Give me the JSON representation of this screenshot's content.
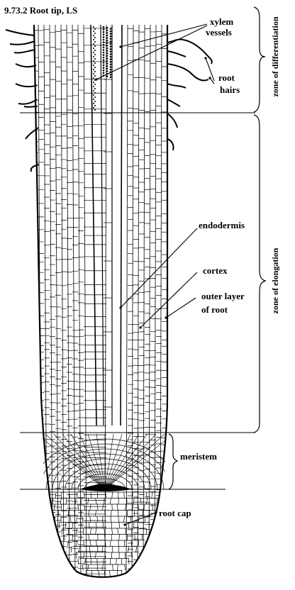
{
  "title": "9.73.2 Root tip, LS",
  "labels": {
    "xylem_vessels_line1": "xylem",
    "xylem_vessels_line2": "vessels",
    "root_hairs_line1": "root",
    "root_hairs_line2": "hairs",
    "endodermis": "endodermis",
    "cortex": "cortex",
    "outer_layer_line1": "outer layer",
    "outer_layer_line2": "of root",
    "meristem": "meristem",
    "root_cap": "root cap"
  },
  "zones": {
    "differentiation": "zone of differentiation",
    "elongation": "zone of elongation"
  },
  "colors": {
    "ink": "#000000",
    "background": "#ffffff"
  }
}
